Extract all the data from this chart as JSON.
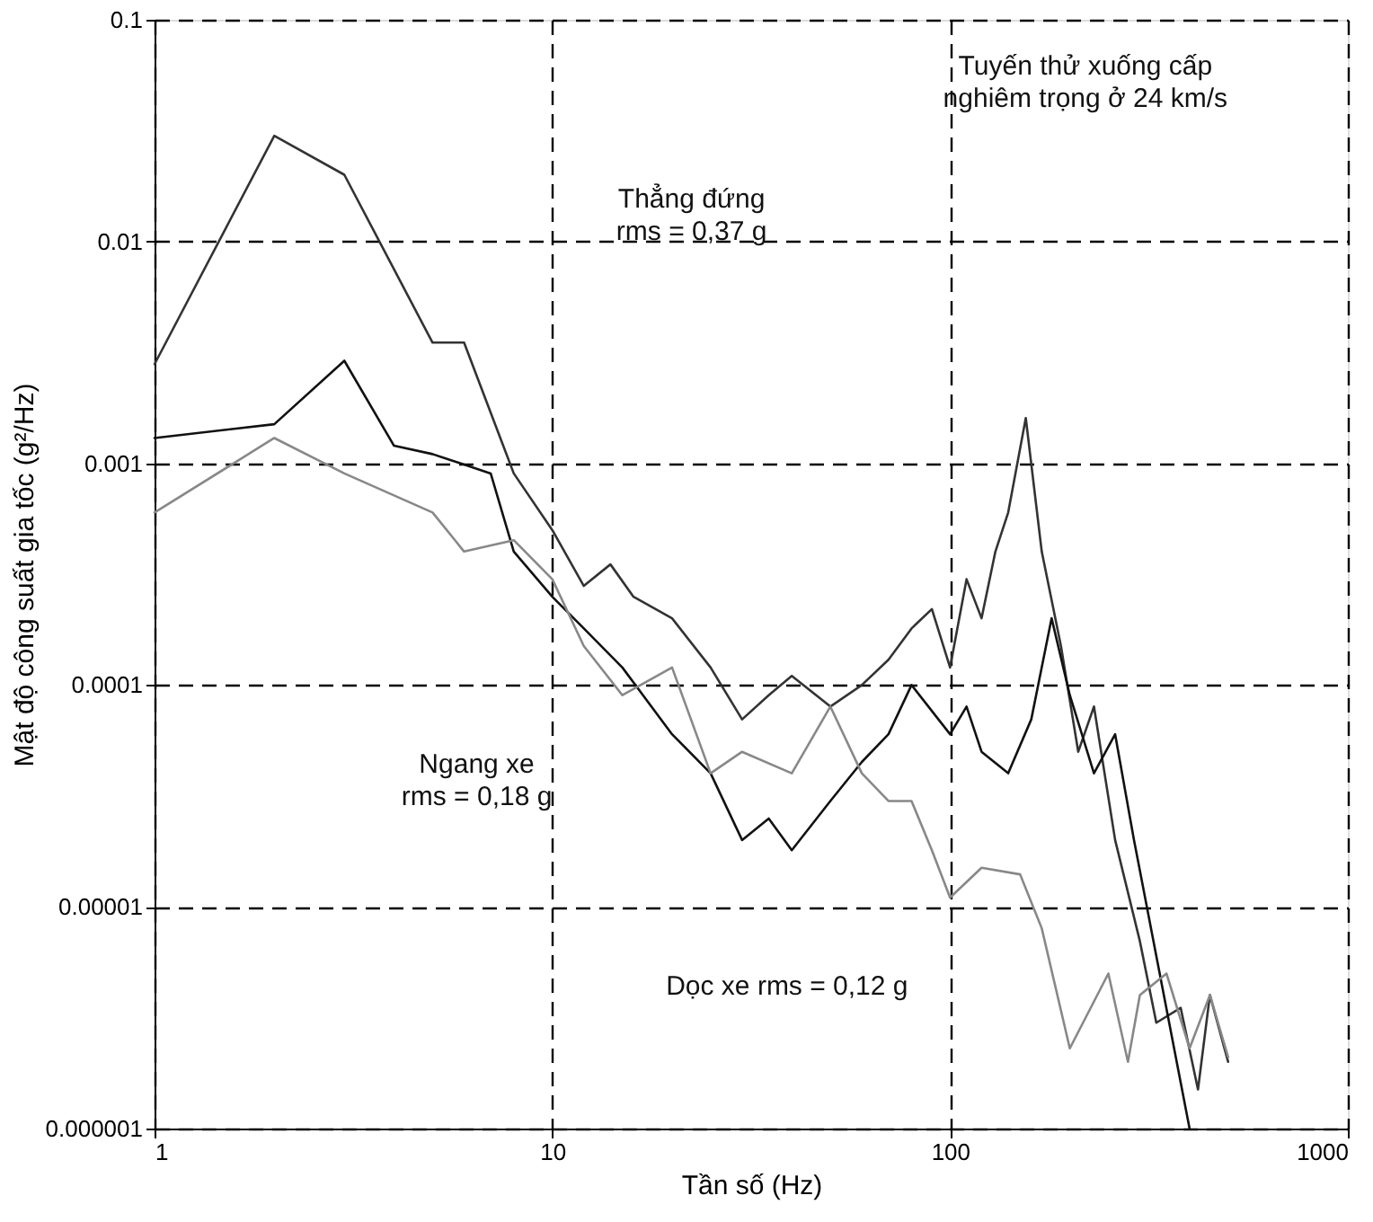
{
  "chart_data": {
    "type": "line",
    "xlabel": "Tần số (Hz)",
    "ylabel": "Mật độ công suất gia tốc (g²/Hz)",
    "log": "xy",
    "grid": true,
    "marker": "none",
    "line_style": "solid",
    "xlim": [
      1,
      1000
    ],
    "xticks": [
      1,
      10,
      100,
      1000
    ],
    "ylim": [
      1e-06,
      0.1
    ],
    "yticks": [
      {
        "value": 1e-06,
        "label": "0.000001"
      },
      {
        "value": 1e-05,
        "label": "0.00001"
      },
      0.0001,
      0.001,
      0.01,
      0.1
    ],
    "series": [
      {
        "color": "#333333",
        "x": [
          1,
          2,
          3,
          5,
          6,
          8,
          10,
          12,
          14,
          16,
          20,
          25,
          30,
          35,
          40,
          50,
          60,
          70,
          80,
          90,
          100,
          110,
          120,
          130,
          140,
          155,
          170,
          190,
          210,
          230,
          260,
          300,
          330,
          380,
          420,
          450,
          500
        ],
        "values": [
          0.0028,
          0.03,
          0.02,
          0.0035,
          0.0035,
          0.0009,
          0.0005,
          0.00028,
          0.00035,
          0.00025,
          0.0002,
          0.00012,
          7e-05,
          9e-05,
          0.00011,
          8e-05,
          0.0001,
          0.00013,
          0.00018,
          0.00022,
          0.00012,
          0.0003,
          0.0002,
          0.0004,
          0.0006,
          0.0016,
          0.0004,
          0.00015,
          5e-05,
          8e-05,
          2e-05,
          7e-06,
          3e-06,
          3.5e-06,
          1.5e-06,
          4e-06,
          2e-06
        ]
      },
      {
        "color": "#111111",
        "x": [
          1,
          2,
          3,
          4,
          5,
          7,
          8,
          10,
          12,
          15,
          20,
          25,
          30,
          35,
          40,
          50,
          60,
          70,
          80,
          100,
          110,
          120,
          140,
          160,
          180,
          200,
          230,
          260,
          290,
          330,
          400
        ],
        "values": [
          0.0013,
          0.0015,
          0.0029,
          0.0012,
          0.0011,
          0.0009,
          0.0004,
          0.00025,
          0.00018,
          0.00012,
          6e-05,
          4e-05,
          2e-05,
          2.5e-05,
          1.8e-05,
          3e-05,
          4.5e-05,
          6e-05,
          0.0001,
          6e-05,
          8e-05,
          5e-05,
          4e-05,
          7e-05,
          0.0002,
          9e-05,
          4e-05,
          6e-05,
          2e-05,
          6e-06,
          1e-06
        ]
      },
      {
        "color": "#888888",
        "x": [
          1,
          2,
          3,
          5,
          6,
          8,
          10,
          12,
          15,
          20,
          25,
          30,
          40,
          50,
          60,
          70,
          80,
          90,
          100,
          120,
          150,
          170,
          200,
          250,
          280,
          300,
          350,
          400,
          450,
          500
        ],
        "values": [
          0.0006,
          0.0013,
          0.0009,
          0.0006,
          0.0004,
          0.00045,
          0.0003,
          0.00015,
          9e-05,
          0.00012,
          4e-05,
          5e-05,
          4e-05,
          8e-05,
          4e-05,
          3e-05,
          3e-05,
          1.8e-05,
          1.1e-05,
          1.5e-05,
          1.4e-05,
          8e-06,
          2.3e-06,
          5e-06,
          2e-06,
          4e-06,
          5e-06,
          2.3e-06,
          4e-06,
          2.1e-06
        ]
      }
    ],
    "annotations": [
      "Thẳng đứng\nrms = 0,37 g",
      "Ngang xe\nrms = 0,18 g",
      "Dọc xe rms = 0,12 g",
      "Tuyến thử xuống cấp\nnghiêm trọng ở 24 km/s"
    ]
  }
}
